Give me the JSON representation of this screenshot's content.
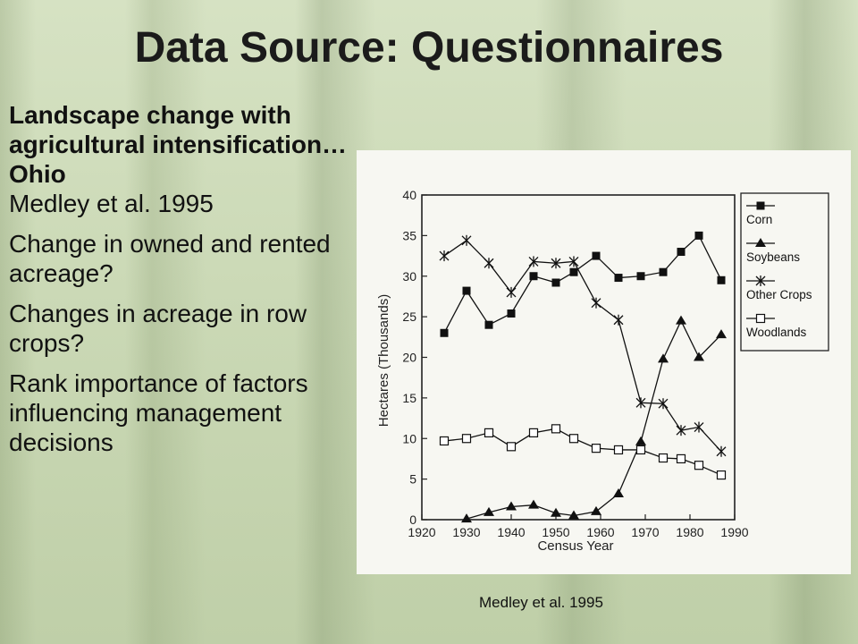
{
  "slide": {
    "title": "Data Source: Questionnaires",
    "heading": "Landscape change with agricultural intensification…Ohio",
    "citation": "Medley et al. 1995",
    "bullets": [
      "Change in owned and rented acreage?",
      "Changes in acreage in row crops?",
      "Rank importance of factors influencing management decisions"
    ],
    "figure_caption": "Medley et al. 1995"
  },
  "chart_data": {
    "type": "line",
    "ylabel": "Hectares (Thousands)",
    "xlabel": "Census Year",
    "xlim": [
      1920,
      1990
    ],
    "ylim": [
      0,
      40
    ],
    "x_ticks": [
      "1920",
      "1930",
      "1940",
      "1950",
      "1960",
      "1970",
      "1980",
      "1990"
    ],
    "y_ticks": [
      "0",
      "5",
      "10",
      "15",
      "20",
      "25",
      "30",
      "35",
      "40"
    ],
    "legend_position": "right",
    "series": [
      {
        "name": "Corn",
        "marker": "square",
        "x": [
          1925,
          1930,
          1935,
          1940,
          1945,
          1950,
          1954,
          1959,
          1964,
          1969,
          1974,
          1978,
          1982,
          1987
        ],
        "y": [
          23.0,
          28.2,
          24.0,
          25.4,
          30.0,
          29.2,
          30.5,
          32.5,
          29.8,
          30.0,
          30.5,
          33.0,
          35.0,
          29.5
        ]
      },
      {
        "name": "Soybeans",
        "marker": "triangle",
        "x": [
          1930,
          1935,
          1940,
          1945,
          1950,
          1954,
          1959,
          1964,
          1969,
          1974,
          1978,
          1982,
          1987
        ],
        "y": [
          0.1,
          0.9,
          1.6,
          1.8,
          0.8,
          0.5,
          1.0,
          3.2,
          9.6,
          19.8,
          24.5,
          20.0,
          22.8
        ]
      },
      {
        "name": "Other Crops",
        "marker": "star",
        "x": [
          1925,
          1930,
          1935,
          1940,
          1945,
          1950,
          1954,
          1959,
          1964,
          1969,
          1974,
          1978,
          1982,
          1987
        ],
        "y": [
          32.5,
          34.4,
          31.6,
          28.0,
          31.8,
          31.6,
          31.8,
          26.7,
          24.6,
          14.4,
          14.3,
          11.0,
          11.4,
          8.4
        ]
      },
      {
        "name": "Woodlands",
        "marker": "open-square",
        "x": [
          1925,
          1930,
          1935,
          1940,
          1945,
          1950,
          1954,
          1959,
          1964,
          1969,
          1974,
          1978,
          1982,
          1987
        ],
        "y": [
          9.7,
          10.0,
          10.7,
          9.0,
          10.7,
          11.2,
          10.0,
          8.8,
          8.6,
          8.6,
          7.6,
          7.5,
          6.7,
          5.5
        ]
      }
    ]
  }
}
